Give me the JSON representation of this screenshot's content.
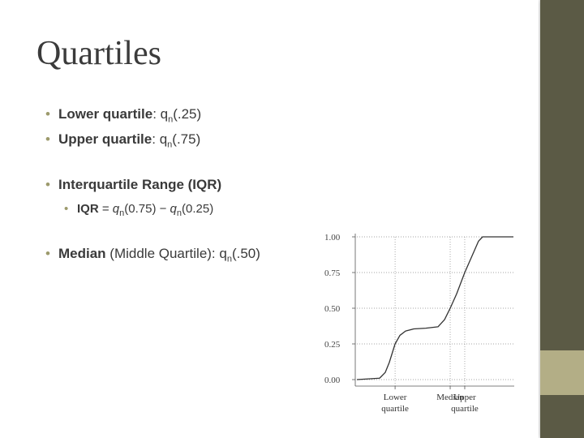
{
  "title": "Quartiles",
  "bullets": [
    {
      "parts": [
        "Lower quartile",
        ": q",
        "n",
        "(.25)"
      ]
    },
    {
      "parts": [
        "Upper quartile",
        ": q",
        "n",
        "(.75)"
      ]
    },
    {
      "parts": [
        "Interquartile Range (IQR)"
      ]
    },
    {
      "parts": [
        "IQR",
        " = ",
        "q",
        "n",
        "(0.75) − ",
        "q",
        "n",
        "(0.25)"
      ]
    },
    {
      "parts": [
        "Median",
        " (Middle Quartile): q",
        "n",
        "(.50)"
      ]
    }
  ],
  "chart_data": {
    "type": "line",
    "x": [
      0,
      14.5,
      18.1,
      20.7,
      24.4,
      27.5,
      31.1,
      36.3,
      44,
      51.8,
      56,
      59.6,
      63.7,
      68.9,
      74.1,
      77.7,
      80.3,
      100
    ],
    "values": [
      0,
      0.01,
      0.05,
      0.12,
      0.25,
      0.31,
      0.34,
      0.355,
      0.36,
      0.37,
      0.42,
      0.5,
      0.6,
      0.75,
      0.88,
      0.97,
      1,
      1
    ],
    "xlim": [
      0,
      100
    ],
    "ylim": [
      0,
      1
    ],
    "yticks": [
      {
        "value": 0,
        "label": "0.00"
      },
      {
        "value": 0.25,
        "label": "0.25"
      },
      {
        "value": 0.5,
        "label": "0.50"
      },
      {
        "value": 0.75,
        "label": "0.75"
      },
      {
        "value": 1,
        "label": "1.00"
      }
    ],
    "markers": [
      {
        "label": "Lower quartile",
        "x": 24.4
      },
      {
        "label": "Median",
        "x": 59.6
      },
      {
        "label": "Upper quartile",
        "x": 68.9
      }
    ],
    "color": "#333333",
    "grid": true
  }
}
